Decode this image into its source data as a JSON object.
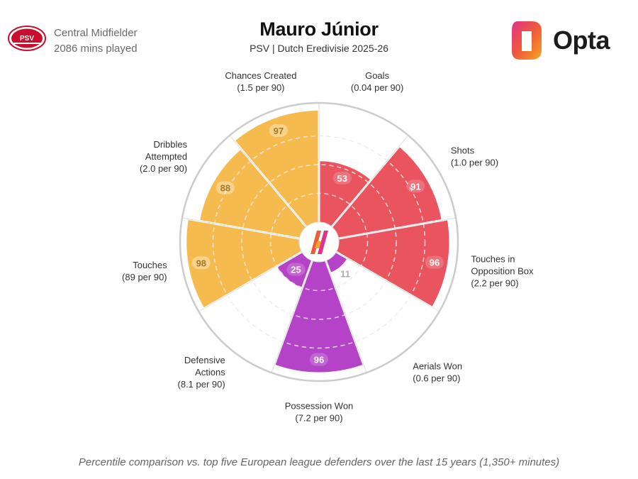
{
  "player": {
    "name": "Mauro Júnior",
    "position": "Central Midfielder",
    "minutes": "2086 mins played",
    "competition": "PSV | Dutch Eredivisie 2025-26"
  },
  "club": {
    "logo_text": "PSV"
  },
  "brand": {
    "name": "Opta"
  },
  "footnote": "Percentile comparison vs. top five European league defenders over the last 15 years (1,350+ minutes)",
  "colors": {
    "attacking": "#e9545f",
    "possession": "#f5bb4e",
    "defending": "#b543c8",
    "ring": "#cccccc",
    "grid": "#ffffff"
  },
  "chart_data": {
    "type": "radar",
    "scale": [
      0,
      100
    ],
    "series": [
      {
        "metric": "Goals",
        "rate": "(0.04 per 90)",
        "percentile": 53,
        "group": "attacking"
      },
      {
        "metric": "Shots",
        "rate": "(1.0 per 90)",
        "percentile": 91,
        "group": "attacking"
      },
      {
        "metric": "Touches in\nOpposition Box",
        "rate": "(2.2 per 90)",
        "percentile": 96,
        "group": "attacking"
      },
      {
        "metric": "Aerials Won",
        "rate": "(0.6 per 90)",
        "percentile": 11,
        "group": "defending"
      },
      {
        "metric": "Possession Won",
        "rate": "(7.2 per 90)",
        "percentile": 96,
        "group": "defending"
      },
      {
        "metric": "Defensive\nActions",
        "rate": "(8.1 per 90)",
        "percentile": 25,
        "group": "defending"
      },
      {
        "metric": "Touches",
        "rate": "(89 per 90)",
        "percentile": 98,
        "group": "possession"
      },
      {
        "metric": "Dribbles\nAttempted",
        "rate": "(2.0 per 90)",
        "percentile": 88,
        "group": "possession"
      },
      {
        "metric": "Chances Created",
        "rate": "(1.5 per 90)",
        "percentile": 97,
        "group": "possession"
      }
    ]
  }
}
